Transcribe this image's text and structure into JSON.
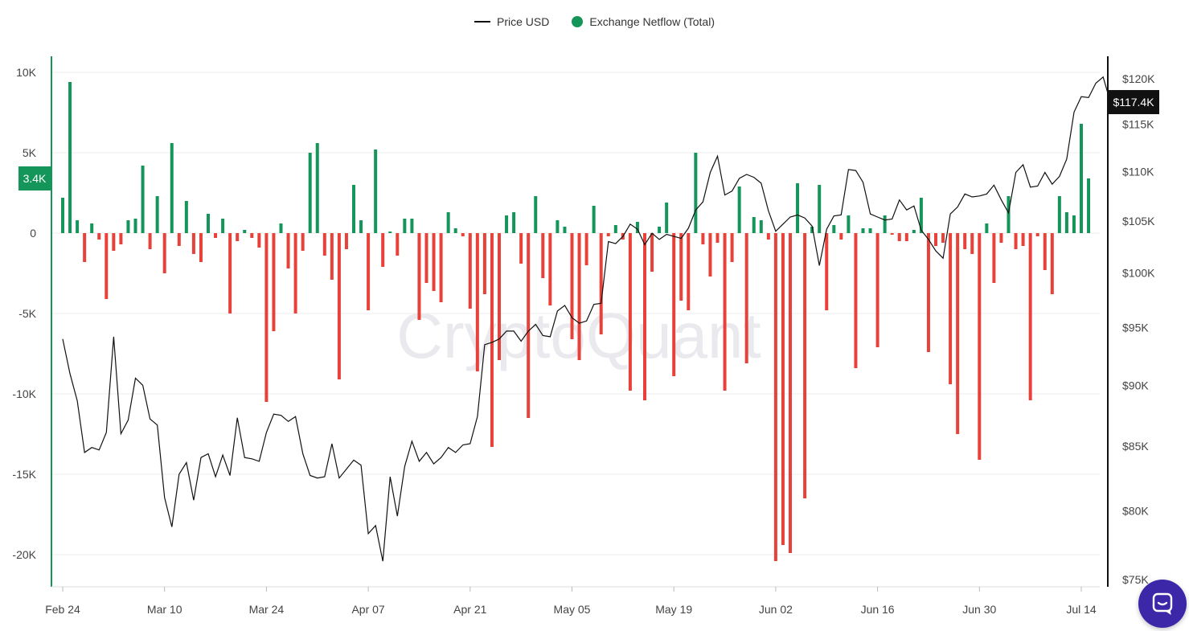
{
  "legend": {
    "price_label": "Price USD",
    "netflow_label": "Exchange Netflow (Total)"
  },
  "colors": {
    "positive": "#14955a",
    "negative": "#e8413a",
    "price_line": "#111111",
    "left_axis": "#14955a",
    "right_axis": "#111111",
    "chat_bg": "#3b27a8"
  },
  "watermark": "CryptoQuant",
  "chat_icon": "chat-bubble-icon",
  "chart_data": {
    "type": "bar+line",
    "title": "",
    "series": [
      {
        "name": "Exchange Netflow (Total)",
        "type": "bar",
        "axis": "left"
      },
      {
        "name": "Price USD",
        "type": "line",
        "axis": "right"
      }
    ],
    "left_axis": {
      "ylim": [
        -22000,
        11000
      ],
      "ticks": [
        10000,
        5000,
        0,
        -5000,
        -10000,
        -15000,
        -20000
      ],
      "tick_labels": [
        "10K",
        "5K",
        "0",
        "-5K",
        "-10K",
        "-15K",
        "-20K"
      ]
    },
    "right_axis": {
      "log_scale": true,
      "ticks": [
        120000,
        115000,
        110000,
        105000,
        100000,
        95000,
        90000,
        85000,
        80000,
        75000
      ],
      "tick_labels": [
        "$120K",
        "$115K",
        "$110K",
        "$105K",
        "$100K",
        "$95K",
        "$90K",
        "$85K",
        "$80K",
        "$75K"
      ]
    },
    "x_labels": [
      "Feb 24",
      "Mar 10",
      "Mar 24",
      "Apr 07",
      "Apr 21",
      "May 05",
      "May 19",
      "Jun 02",
      "Jun 16",
      "Jun 30",
      "Jul 14"
    ],
    "x_label_dates": [
      "2025-02-24",
      "2025-03-10",
      "2025-03-24",
      "2025-04-07",
      "2025-04-21",
      "2025-05-05",
      "2025-05-19",
      "2025-06-02",
      "2025-06-16",
      "2025-06-30",
      "2025-07-14"
    ],
    "current_netflow_label": "3.4K",
    "current_price_label": "$117.4K",
    "grid": true,
    "legend_position": "top-center",
    "netflow": [
      [
        "2025-02-24",
        2200
      ],
      [
        "2025-02-25",
        9400
      ],
      [
        "2025-02-26",
        800
      ],
      [
        "2025-02-27",
        -1800
      ],
      [
        "2025-02-28",
        600
      ],
      [
        "2025-03-01",
        -400
      ],
      [
        "2025-03-02",
        -4100
      ],
      [
        "2025-03-03",
        -1100
      ],
      [
        "2025-03-04",
        -700
      ],
      [
        "2025-03-05",
        800
      ],
      [
        "2025-03-06",
        900
      ],
      [
        "2025-03-07",
        4200
      ],
      [
        "2025-03-08",
        -1000
      ],
      [
        "2025-03-09",
        2300
      ],
      [
        "2025-03-10",
        -2500
      ],
      [
        "2025-03-11",
        5600
      ],
      [
        "2025-03-12",
        -800
      ],
      [
        "2025-03-13",
        2000
      ],
      [
        "2025-03-14",
        -1300
      ],
      [
        "2025-03-15",
        -1800
      ],
      [
        "2025-03-16",
        1200
      ],
      [
        "2025-03-17",
        -300
      ],
      [
        "2025-03-18",
        900
      ],
      [
        "2025-03-19",
        -5000
      ],
      [
        "2025-03-20",
        -500
      ],
      [
        "2025-03-21",
        200
      ],
      [
        "2025-03-22",
        -300
      ],
      [
        "2025-03-23",
        -900
      ],
      [
        "2025-03-24",
        -10500
      ],
      [
        "2025-03-25",
        -6100
      ],
      [
        "2025-03-26",
        600
      ],
      [
        "2025-03-27",
        -2200
      ],
      [
        "2025-03-28",
        -5000
      ],
      [
        "2025-03-29",
        -1100
      ],
      [
        "2025-03-30",
        5000
      ],
      [
        "2025-03-31",
        5600
      ],
      [
        "2025-04-01",
        -1400
      ],
      [
        "2025-04-02",
        -2900
      ],
      [
        "2025-04-03",
        -9100
      ],
      [
        "2025-04-04",
        -1000
      ],
      [
        "2025-04-05",
        3000
      ],
      [
        "2025-04-06",
        800
      ],
      [
        "2025-04-07",
        -4800
      ],
      [
        "2025-04-08",
        5200
      ],
      [
        "2025-04-09",
        -2100
      ],
      [
        "2025-04-10",
        100
      ],
      [
        "2025-04-11",
        -1400
      ],
      [
        "2025-04-12",
        900
      ],
      [
        "2025-04-13",
        900
      ],
      [
        "2025-04-14",
        -5400
      ],
      [
        "2025-04-15",
        -3100
      ],
      [
        "2025-04-16",
        -3600
      ],
      [
        "2025-04-17",
        -4300
      ],
      [
        "2025-04-18",
        1300
      ],
      [
        "2025-04-19",
        300
      ],
      [
        "2025-04-20",
        -200
      ],
      [
        "2025-04-21",
        -4700
      ],
      [
        "2025-04-22",
        -8600
      ],
      [
        "2025-04-23",
        -3800
      ],
      [
        "2025-04-24",
        -13300
      ],
      [
        "2025-04-25",
        -7900
      ],
      [
        "2025-04-26",
        1100
      ],
      [
        "2025-04-27",
        1300
      ],
      [
        "2025-04-28",
        -1900
      ],
      [
        "2025-04-29",
        -11500
      ],
      [
        "2025-04-30",
        2300
      ],
      [
        "2025-05-01",
        -2800
      ],
      [
        "2025-05-02",
        -4500
      ],
      [
        "2025-05-03",
        800
      ],
      [
        "2025-05-04",
        400
      ],
      [
        "2025-05-05",
        -6600
      ],
      [
        "2025-05-06",
        -7900
      ],
      [
        "2025-05-07",
        -2000
      ],
      [
        "2025-05-08",
        1700
      ],
      [
        "2025-05-09",
        -6300
      ],
      [
        "2025-05-10",
        -200
      ],
      [
        "2025-05-11",
        500
      ],
      [
        "2025-05-12",
        -400
      ],
      [
        "2025-05-13",
        -9800
      ],
      [
        "2025-05-14",
        700
      ],
      [
        "2025-05-15",
        -10400
      ],
      [
        "2025-05-16",
        -2400
      ],
      [
        "2025-05-17",
        400
      ],
      [
        "2025-05-18",
        1900
      ],
      [
        "2025-05-19",
        -8900
      ],
      [
        "2025-05-20",
        -4200
      ],
      [
        "2025-05-21",
        -4800
      ],
      [
        "2025-05-22",
        5000
      ],
      [
        "2025-05-23",
        -700
      ],
      [
        "2025-05-24",
        -2700
      ],
      [
        "2025-05-25",
        -600
      ],
      [
        "2025-05-26",
        -9800
      ],
      [
        "2025-05-27",
        -1800
      ],
      [
        "2025-05-28",
        2900
      ],
      [
        "2025-05-29",
        -8100
      ],
      [
        "2025-05-30",
        1000
      ],
      [
        "2025-05-31",
        800
      ],
      [
        "2025-06-01",
        -400
      ],
      [
        "2025-06-02",
        -20400
      ],
      [
        "2025-06-03",
        -19400
      ],
      [
        "2025-06-04",
        -19900
      ],
      [
        "2025-06-05",
        3100
      ],
      [
        "2025-06-06",
        -16500
      ],
      [
        "2025-06-07",
        400
      ],
      [
        "2025-06-08",
        3000
      ],
      [
        "2025-06-09",
        -4800
      ],
      [
        "2025-06-10",
        500
      ],
      [
        "2025-06-11",
        -400
      ],
      [
        "2025-06-12",
        1100
      ],
      [
        "2025-06-13",
        -8400
      ],
      [
        "2025-06-14",
        300
      ],
      [
        "2025-06-15",
        300
      ],
      [
        "2025-06-16",
        -7100
      ],
      [
        "2025-06-17",
        1100
      ],
      [
        "2025-06-18",
        -100
      ],
      [
        "2025-06-19",
        -500
      ],
      [
        "2025-06-20",
        -500
      ],
      [
        "2025-06-21",
        200
      ],
      [
        "2025-06-22",
        2200
      ],
      [
        "2025-06-23",
        -7400
      ],
      [
        "2025-06-24",
        -800
      ],
      [
        "2025-06-25",
        -600
      ],
      [
        "2025-06-26",
        -9400
      ],
      [
        "2025-06-27",
        -12500
      ],
      [
        "2025-06-28",
        -1000
      ],
      [
        "2025-06-29",
        -1300
      ],
      [
        "2025-06-30",
        -14100
      ],
      [
        "2025-07-01",
        600
      ],
      [
        "2025-07-02",
        -3100
      ],
      [
        "2025-07-03",
        -600
      ],
      [
        "2025-07-04",
        2300
      ],
      [
        "2025-07-05",
        -1000
      ],
      [
        "2025-07-06",
        -800
      ],
      [
        "2025-07-07",
        -10400
      ],
      [
        "2025-07-08",
        -200
      ],
      [
        "2025-07-09",
        -2300
      ],
      [
        "2025-07-10",
        -3800
      ],
      [
        "2025-07-11",
        2300
      ],
      [
        "2025-07-12",
        1300
      ],
      [
        "2025-07-13",
        1100
      ],
      [
        "2025-07-14",
        6800
      ],
      [
        "2025-07-15",
        3400
      ]
    ],
    "price": [
      [
        "2025-02-24",
        94000
      ],
      [
        "2025-02-25",
        91000
      ],
      [
        "2025-02-26",
        88700
      ],
      [
        "2025-02-27",
        84500
      ],
      [
        "2025-02-28",
        84900
      ],
      [
        "2025-03-01",
        84700
      ],
      [
        "2025-03-02",
        86100
      ],
      [
        "2025-03-03",
        94200
      ],
      [
        "2025-03-04",
        86000
      ],
      [
        "2025-03-05",
        87100
      ],
      [
        "2025-03-06",
        90600
      ],
      [
        "2025-03-07",
        90000
      ],
      [
        "2025-03-08",
        87200
      ],
      [
        "2025-03-09",
        86700
      ],
      [
        "2025-03-10",
        81000
      ],
      [
        "2025-03-11",
        78800
      ],
      [
        "2025-03-12",
        82800
      ],
      [
        "2025-03-13",
        83700
      ],
      [
        "2025-03-14",
        80800
      ],
      [
        "2025-03-15",
        84100
      ],
      [
        "2025-03-16",
        84400
      ],
      [
        "2025-03-17",
        82600
      ],
      [
        "2025-03-18",
        84300
      ],
      [
        "2025-03-19",
        82700
      ],
      [
        "2025-03-20",
        87300
      ],
      [
        "2025-03-21",
        84100
      ],
      [
        "2025-03-22",
        84000
      ],
      [
        "2025-03-23",
        83800
      ],
      [
        "2025-03-24",
        86100
      ],
      [
        "2025-03-25",
        87600
      ],
      [
        "2025-03-26",
        87500
      ],
      [
        "2025-03-27",
        87000
      ],
      [
        "2025-03-28",
        87400
      ],
      [
        "2025-03-29",
        84400
      ],
      [
        "2025-03-30",
        82700
      ],
      [
        "2025-03-31",
        82500
      ],
      [
        "2025-04-01",
        82600
      ],
      [
        "2025-04-02",
        85200
      ],
      [
        "2025-04-03",
        82500
      ],
      [
        "2025-04-04",
        83200
      ],
      [
        "2025-04-05",
        83900
      ],
      [
        "2025-04-06",
        83500
      ],
      [
        "2025-04-07",
        78300
      ],
      [
        "2025-04-08",
        78900
      ],
      [
        "2025-04-09",
        76300
      ],
      [
        "2025-04-10",
        82600
      ],
      [
        "2025-04-11",
        79600
      ],
      [
        "2025-04-12",
        83400
      ],
      [
        "2025-04-13",
        85400
      ],
      [
        "2025-04-14",
        83800
      ],
      [
        "2025-04-15",
        84500
      ],
      [
        "2025-04-16",
        83600
      ],
      [
        "2025-04-17",
        84100
      ],
      [
        "2025-04-18",
        84900
      ],
      [
        "2025-04-19",
        84500
      ],
      [
        "2025-04-20",
        85100
      ],
      [
        "2025-04-21",
        85200
      ],
      [
        "2025-04-22",
        87400
      ],
      [
        "2025-04-23",
        93500
      ],
      [
        "2025-04-24",
        93700
      ],
      [
        "2025-04-25",
        94000
      ],
      [
        "2025-04-26",
        94700
      ],
      [
        "2025-04-27",
        94700
      ],
      [
        "2025-04-28",
        93800
      ],
      [
        "2025-04-29",
        94700
      ],
      [
        "2025-04-30",
        95300
      ],
      [
        "2025-05-01",
        94300
      ],
      [
        "2025-05-02",
        94200
      ],
      [
        "2025-05-03",
        96500
      ],
      [
        "2025-05-04",
        97000
      ],
      [
        "2025-05-05",
        95900
      ],
      [
        "2025-05-06",
        95400
      ],
      [
        "2025-05-07",
        95600
      ],
      [
        "2025-05-08",
        97100
      ],
      [
        "2025-05-09",
        97200
      ],
      [
        "2025-05-10",
        103000
      ],
      [
        "2025-05-11",
        102800
      ],
      [
        "2025-05-12",
        103500
      ],
      [
        "2025-05-13",
        104700
      ],
      [
        "2025-05-14",
        104200
      ],
      [
        "2025-05-15",
        102700
      ],
      [
        "2025-05-16",
        103800
      ],
      [
        "2025-05-17",
        103200
      ],
      [
        "2025-05-18",
        103700
      ],
      [
        "2025-05-19",
        103500
      ],
      [
        "2025-05-20",
        103300
      ],
      [
        "2025-05-21",
        104300
      ],
      [
        "2025-05-22",
        106100
      ],
      [
        "2025-05-23",
        106900
      ],
      [
        "2025-05-24",
        109900
      ],
      [
        "2025-05-25",
        111600
      ],
      [
        "2025-05-26",
        107600
      ],
      [
        "2025-05-27",
        108000
      ],
      [
        "2025-05-28",
        109300
      ],
      [
        "2025-05-29",
        109700
      ],
      [
        "2025-05-30",
        109400
      ],
      [
        "2025-05-31",
        108800
      ],
      [
        "2025-06-01",
        106000
      ],
      [
        "2025-06-02",
        104000
      ],
      [
        "2025-06-03",
        104700
      ],
      [
        "2025-06-04",
        105400
      ],
      [
        "2025-06-05",
        105600
      ],
      [
        "2025-06-06",
        105300
      ],
      [
        "2025-06-07",
        104500
      ],
      [
        "2025-06-08",
        100700
      ],
      [
        "2025-06-09",
        104200
      ],
      [
        "2025-06-10",
        105500
      ],
      [
        "2025-06-11",
        105600
      ],
      [
        "2025-06-12",
        110200
      ],
      [
        "2025-06-13",
        110100
      ],
      [
        "2025-06-14",
        108900
      ],
      [
        "2025-06-15",
        105700
      ],
      [
        "2025-06-16",
        105400
      ],
      [
        "2025-06-17",
        105100
      ],
      [
        "2025-06-18",
        105200
      ],
      [
        "2025-06-19",
        107100
      ],
      [
        "2025-06-20",
        106100
      ],
      [
        "2025-06-21",
        106500
      ],
      [
        "2025-06-22",
        104100
      ],
      [
        "2025-06-23",
        103200
      ],
      [
        "2025-06-24",
        102100
      ],
      [
        "2025-06-25",
        101400
      ],
      [
        "2025-06-26",
        105700
      ],
      [
        "2025-06-27",
        106400
      ],
      [
        "2025-06-28",
        107700
      ],
      [
        "2025-06-29",
        107400
      ],
      [
        "2025-06-30",
        107500
      ],
      [
        "2025-07-01",
        107700
      ],
      [
        "2025-07-02",
        108600
      ],
      [
        "2025-07-03",
        107100
      ],
      [
        "2025-07-04",
        105800
      ],
      [
        "2025-07-05",
        109900
      ],
      [
        "2025-07-06",
        110700
      ],
      [
        "2025-07-07",
        108400
      ],
      [
        "2025-07-08",
        108500
      ],
      [
        "2025-07-09",
        109900
      ],
      [
        "2025-07-10",
        108700
      ],
      [
        "2025-07-11",
        109500
      ],
      [
        "2025-07-12",
        111300
      ],
      [
        "2025-07-13",
        116300
      ],
      [
        "2025-07-14",
        118000
      ],
      [
        "2025-07-15",
        117900
      ],
      [
        "2025-07-16",
        119500
      ],
      [
        "2025-07-17",
        120200
      ],
      [
        "2025-07-18",
        117400
      ]
    ]
  }
}
